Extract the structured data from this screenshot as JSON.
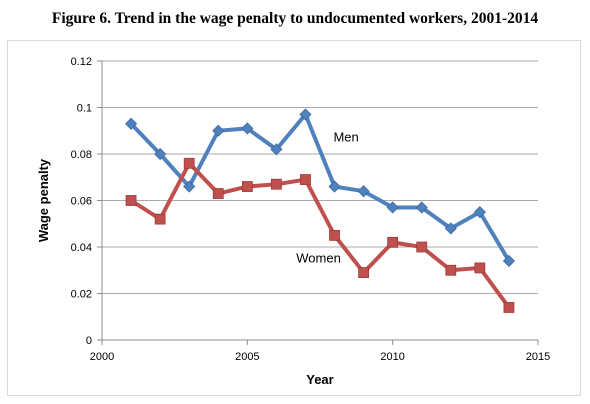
{
  "figure_title": "Figure 6. Trend in the wage penalty to undocumented workers, 2001-2014",
  "chart_data": {
    "type": "line",
    "title": "Figure 6. Trend in the wage penalty to undocumented workers, 2001-2014",
    "xlabel": "Year",
    "ylabel": "Wage penalty",
    "xlim": [
      2000,
      2015
    ],
    "ylim": [
      0,
      0.12
    ],
    "xticks": [
      2000,
      2005,
      2010,
      2015
    ],
    "xtick_labels": [
      "2000",
      "2005",
      "2010",
      "2015"
    ],
    "yticks": [
      0,
      0.02,
      0.04,
      0.06,
      0.08,
      0.1,
      0.12
    ],
    "ytick_labels": [
      "0",
      "0.02",
      "0.04",
      "0.06",
      "0.08",
      "0.1",
      "0.12"
    ],
    "grid": "horizontal",
    "x": [
      2001,
      2002,
      2003,
      2004,
      2005,
      2006,
      2007,
      2008,
      2009,
      2010,
      2011,
      2012,
      2013,
      2014
    ],
    "series": [
      {
        "name": "Men",
        "color": "#4f81bd",
        "marker": "diamond",
        "values": [
          0.093,
          0.08,
          0.066,
          0.09,
          0.091,
          0.082,
          0.097,
          0.066,
          0.064,
          0.057,
          0.057,
          0.048,
          0.055,
          0.034
        ]
      },
      {
        "name": "Women",
        "color": "#c0504d",
        "marker": "square",
        "values": [
          0.06,
          0.052,
          0.076,
          0.063,
          0.066,
          0.067,
          0.069,
          0.045,
          0.029,
          0.042,
          0.04,
          0.03,
          0.031,
          0.014
        ]
      }
    ]
  }
}
